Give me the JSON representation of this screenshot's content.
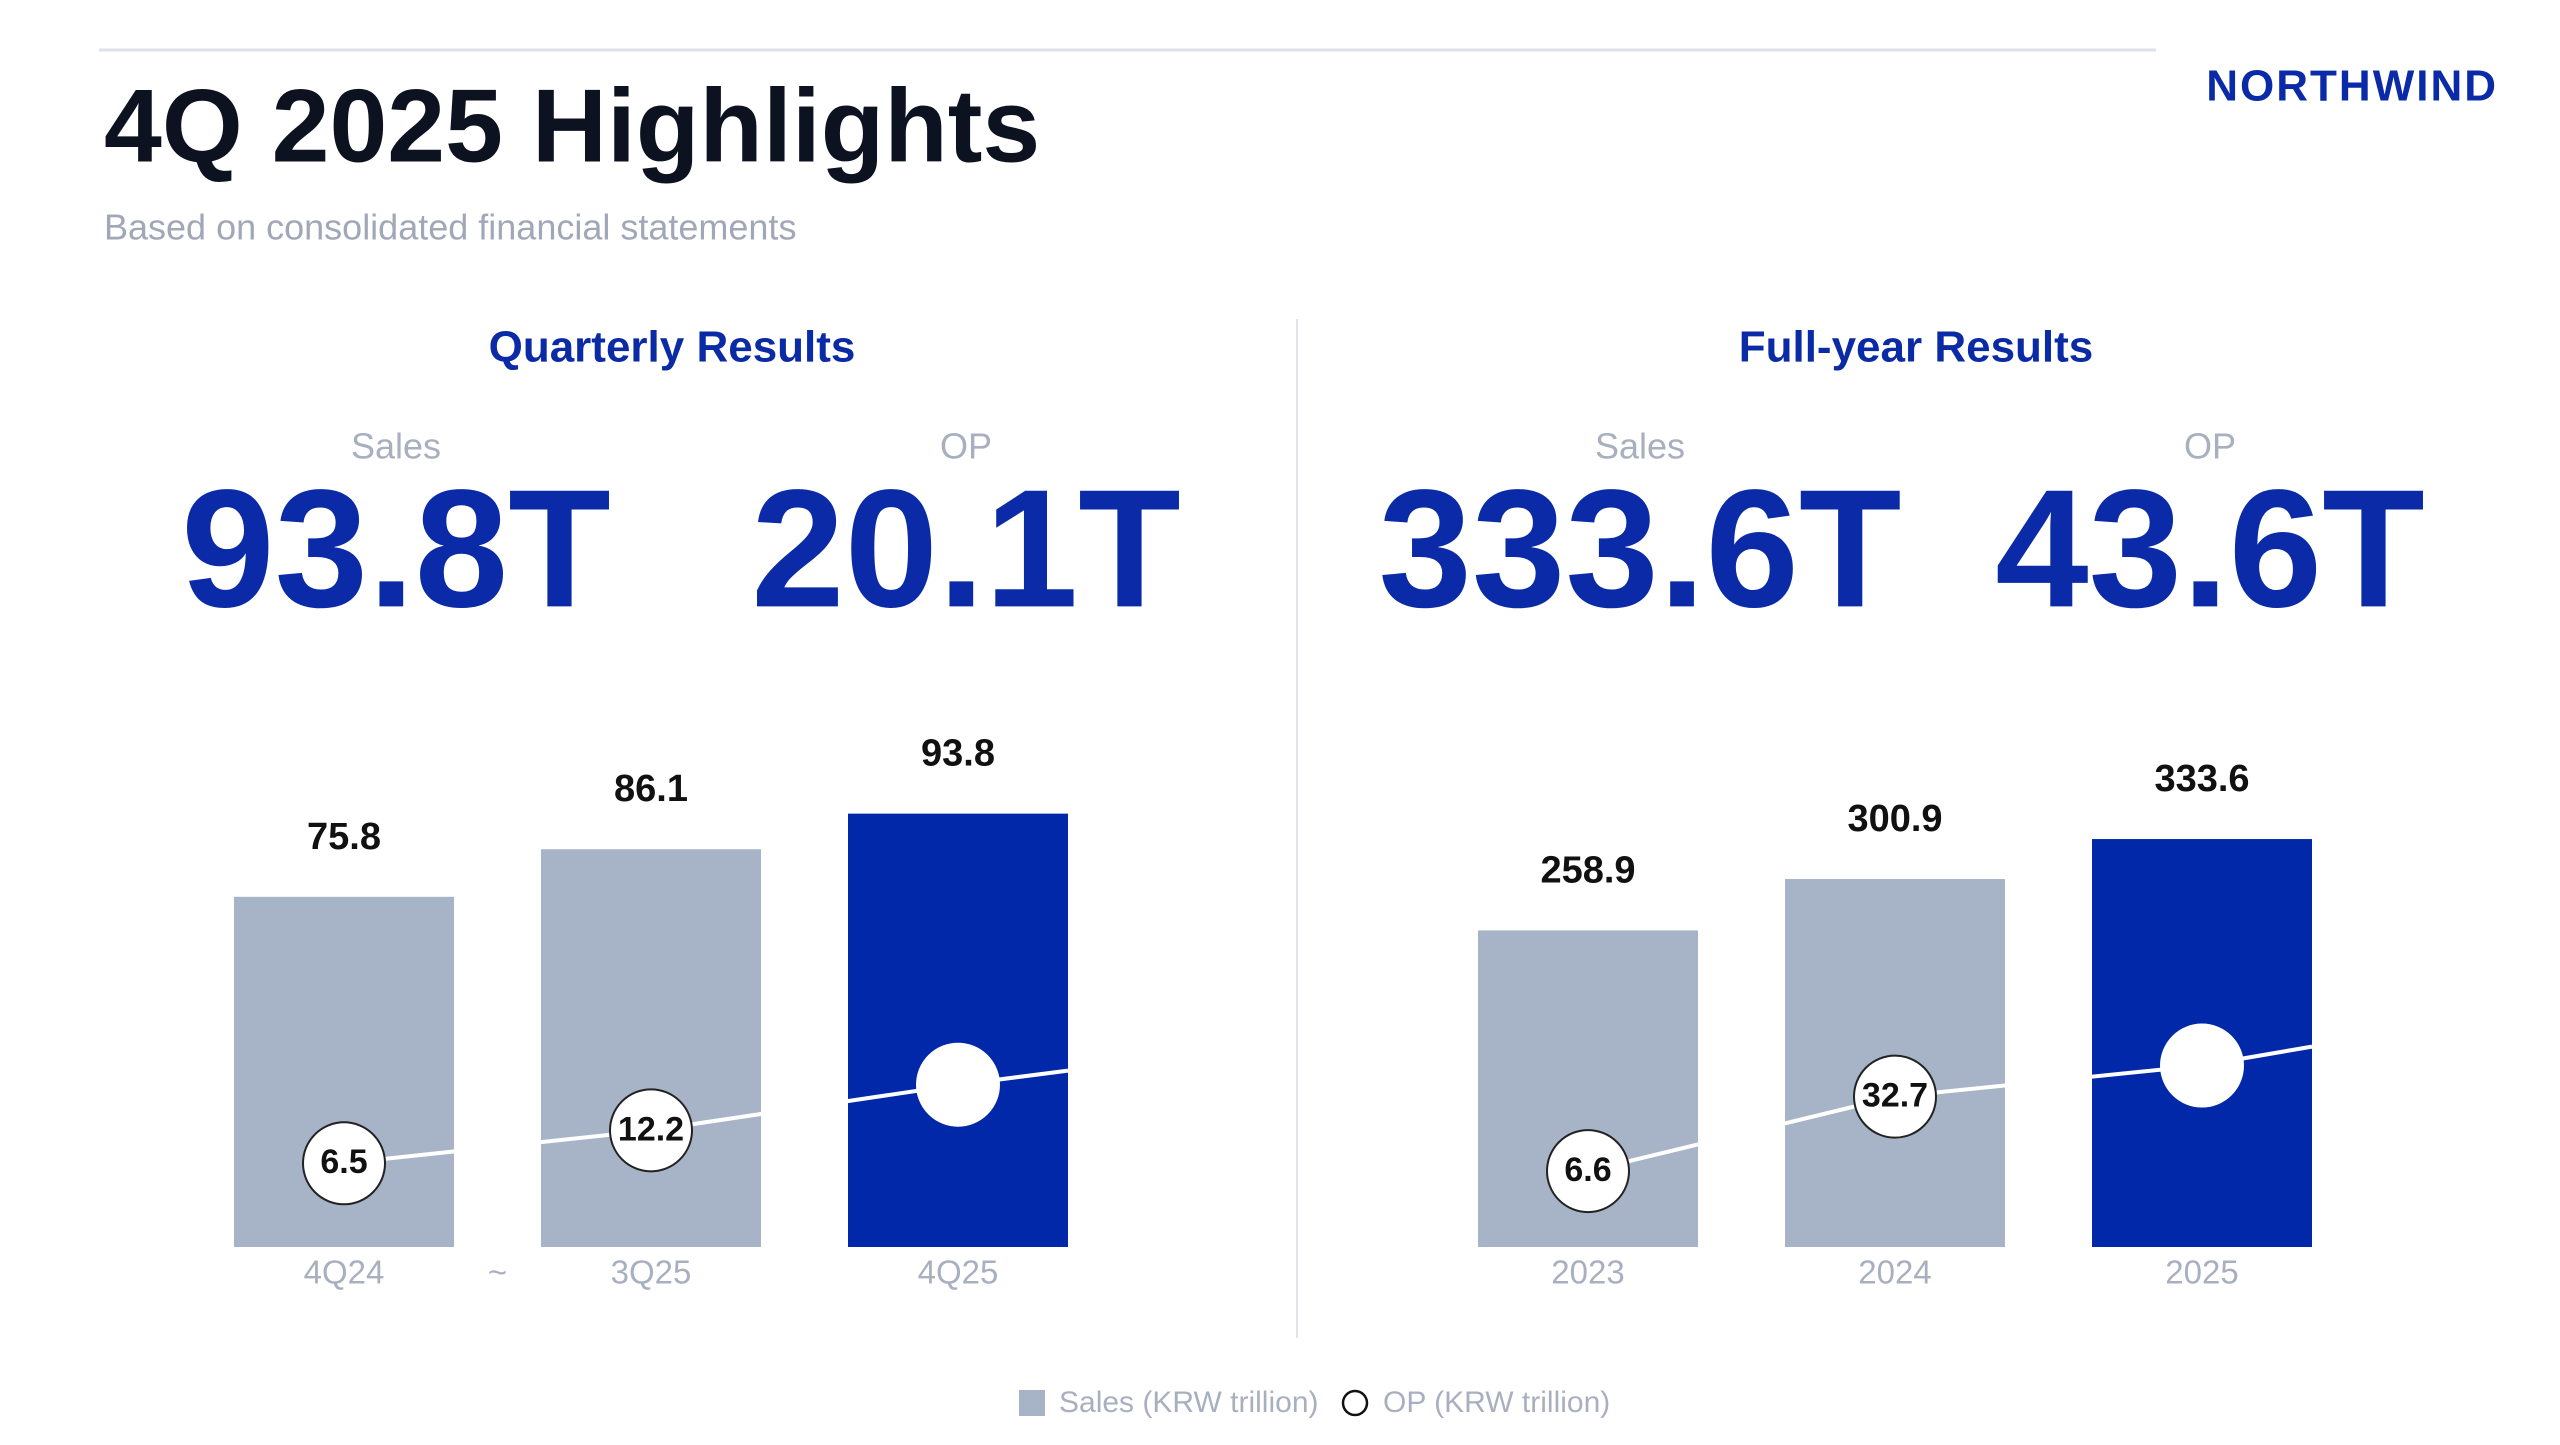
{
  "header": {
    "title": "4Q 2025 Highlights",
    "subtitle": "Based on consolidated financial statements",
    "brand": "NORTHWIND"
  },
  "legend": [
    {
      "name": "Sales (KRW trillion)",
      "color": "#a7b3c6",
      "marker": "square"
    },
    {
      "name": "OP (KRW trillion)",
      "color": "#ffffff",
      "marker": "circle"
    }
  ],
  "chart_data": [
    {
      "type": "combo",
      "title": "Quarterly Results",
      "kpis": [
        {
          "label": "Sales",
          "value": "93.8T"
        },
        {
          "label": "OP",
          "value": "20.1T"
        }
      ],
      "categories": [
        "4Q24",
        "3Q25",
        "4Q25"
      ],
      "axis_break": "~",
      "series": [
        {
          "values": [
            75.8,
            86.1,
            93.8
          ],
          "colors": [
            "#a7b3c6",
            "#a7b3c6",
            "#0028a8"
          ]
        },
        {
          "axis": "y2",
          "values": [
            6.5,
            12.2,
            20.1
          ],
          "value_labels": [
            "6.5",
            "12.2",
            null
          ]
        }
      ],
      "ylim": [
        0,
        100
      ],
      "y2lim": [
        -8,
        72
      ]
    },
    {
      "type": "combo",
      "title": "Full-year Results",
      "kpis": [
        {
          "label": "Sales",
          "value": "333.6T"
        },
        {
          "label": "OP",
          "value": "43.6T"
        }
      ],
      "categories": [
        "2023",
        "2024",
        "2025"
      ],
      "series": [
        {
          "values": [
            258.9,
            300.9,
            333.6
          ],
          "colors": [
            "#a7b3c6",
            "#a7b3c6",
            "#0028a8"
          ]
        },
        {
          "axis": "y2",
          "values": [
            6.6,
            32.7,
            43.6
          ],
          "value_labels": [
            "6.6",
            "32.7",
            null
          ]
        }
      ],
      "ylim": [
        0,
        350
      ],
      "y2lim": [
        -20,
        130
      ]
    }
  ]
}
